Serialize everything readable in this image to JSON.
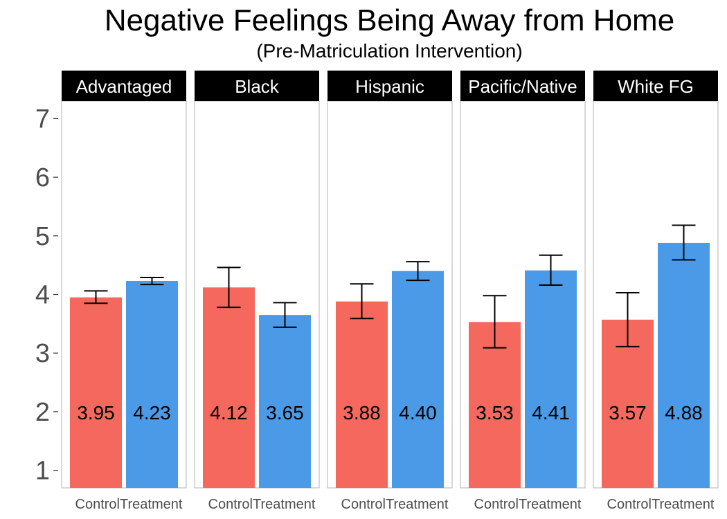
{
  "chart_data": {
    "type": "bar",
    "title": "Negative Feelings Being Away from Home",
    "subtitle": "(Pre-Matriculation Intervention)",
    "xlabel": "",
    "ylabel": "",
    "ylim": [
      0.7,
      7.3
    ],
    "yticks": [
      1,
      2,
      3,
      4,
      5,
      6,
      7
    ],
    "categories": [
      "Control",
      "Treatment"
    ],
    "colors": {
      "Control": "#f4685e",
      "Treatment": "#4a9ae8"
    },
    "label_y": 2,
    "panels": [
      {
        "name": "Advantaged",
        "bars": [
          {
            "category": "Control",
            "value": 3.95,
            "label": "3.95",
            "err_low": 3.85,
            "err_high": 4.06
          },
          {
            "category": "Treatment",
            "value": 4.23,
            "label": "4.23",
            "err_low": 4.17,
            "err_high": 4.29
          }
        ]
      },
      {
        "name": "Black",
        "bars": [
          {
            "category": "Control",
            "value": 4.12,
            "label": "4.12",
            "err_low": 3.78,
            "err_high": 4.46
          },
          {
            "category": "Treatment",
            "value": 3.65,
            "label": "3.65",
            "err_low": 3.44,
            "err_high": 3.86
          }
        ]
      },
      {
        "name": "Hispanic",
        "bars": [
          {
            "category": "Control",
            "value": 3.88,
            "label": "3.88",
            "err_low": 3.59,
            "err_high": 4.18
          },
          {
            "category": "Treatment",
            "value": 4.4,
            "label": "4.40",
            "err_low": 4.24,
            "err_high": 4.56
          }
        ]
      },
      {
        "name": "Pacific/Native",
        "bars": [
          {
            "category": "Control",
            "value": 3.53,
            "label": "3.53",
            "err_low": 3.09,
            "err_high": 3.98
          },
          {
            "category": "Treatment",
            "value": 4.41,
            "label": "4.41",
            "err_low": 4.16,
            "err_high": 4.67
          }
        ]
      },
      {
        "name": "White FG",
        "bars": [
          {
            "category": "Control",
            "value": 3.57,
            "label": "3.57",
            "err_low": 3.11,
            "err_high": 4.03
          },
          {
            "category": "Treatment",
            "value": 4.88,
            "label": "4.88",
            "err_low": 4.59,
            "err_high": 5.18
          }
        ]
      }
    ]
  }
}
